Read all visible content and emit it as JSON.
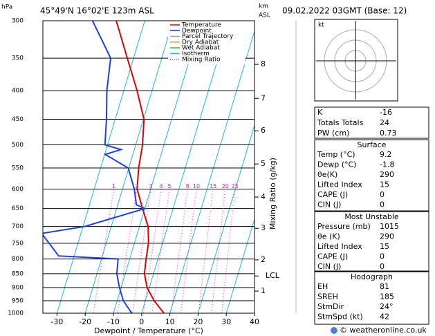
{
  "chart_data": {
    "type": "skewt",
    "location": "45°49'N 16°02'E 123m ASL",
    "date": "09.02.2022 03GMT (Base: 12)",
    "y_label": "hPa",
    "x_label": "Dewpoint / Temperature (°C)",
    "mixing_ratio_label": "Mixing Ratio (g/kg)",
    "height_label": "km",
    "height_sublabel": "ASL",
    "xlim": [
      -35,
      40
    ],
    "xticks": [
      -30,
      -20,
      -10,
      0,
      10,
      20,
      30,
      40
    ],
    "ylim": [
      1000,
      300
    ],
    "yticks": [
      300,
      350,
      400,
      450,
      500,
      550,
      600,
      650,
      700,
      750,
      800,
      850,
      900,
      950,
      1000
    ],
    "log_scale": true,
    "series": [
      {
        "name": "Temperature",
        "color": "#e00000",
        "pressures": [
          1000,
          950,
          900,
          850,
          800,
          750,
          700,
          650,
          600,
          550,
          500,
          450,
          400,
          350,
          300
        ],
        "values": [
          7.9,
          3.1,
          -0.8,
          -3.2,
          -4.2,
          -5,
          -6.9,
          -10.8,
          -14.8,
          -16.5,
          -17.6,
          -19.8,
          -25.3,
          -32.2,
          -40.1
        ]
      },
      {
        "name": "Dewpoint",
        "color": "#1a3ee8",
        "pressures": [
          1000,
          950,
          900,
          850,
          800,
          790,
          720,
          700,
          650,
          640,
          600,
          550,
          520,
          510,
          500,
          450,
          400,
          350,
          300
        ],
        "values": [
          -3.5,
          -7.8,
          -10.6,
          -13,
          -14.1,
          -35.5,
          -43.9,
          -29.5,
          -10,
          -13.4,
          -15.8,
          -20.2,
          -29.8,
          -24.7,
          -30.9,
          -33.1,
          -36,
          -38.1,
          -48.5
        ]
      }
    ],
    "legend": [
      {
        "name": "Parcel Trajectory",
        "color": "#999999"
      },
      {
        "name": "Dry Adiabat",
        "color": "#f0a020"
      },
      {
        "name": "Wet Adiabat",
        "color": "#20b020"
      },
      {
        "name": "Isotherm",
        "color": "#20b8d8"
      },
      {
        "name": "Mixing Ratio",
        "color": "#e020c0",
        "dashed": true
      }
    ],
    "mixing_ratio_lines": [
      1,
      2,
      3,
      4,
      5,
      8,
      10,
      15,
      20,
      25
    ],
    "mixing_ratio_label_pressure": 600,
    "height_ticks": [
      {
        "value": 1,
        "pressure": 913
      },
      {
        "value": 2,
        "pressure": 803
      },
      {
        "value": 3,
        "pressure": 705
      },
      {
        "value": 4,
        "pressure": 620
      },
      {
        "value": 5,
        "pressure": 541
      },
      {
        "value": 6,
        "pressure": 472
      },
      {
        "value": 7,
        "pressure": 413
      },
      {
        "value": 8,
        "pressure": 359
      }
    ],
    "lcl": {
      "label": "LCL",
      "pressure": 858
    },
    "hodograph_unit": "kt",
    "indices": [
      [
        "K",
        "-16"
      ],
      [
        "Totals Totals",
        "24"
      ],
      [
        "PW (cm)",
        "0.73"
      ]
    ],
    "surface": {
      "title": "Surface",
      "rows": [
        [
          "Temp (°C)",
          "9.2"
        ],
        [
          "Dewp (°C)",
          "-1.8"
        ],
        [
          "θe(K)",
          "290"
        ],
        [
          "Lifted Index",
          "15"
        ],
        [
          "CAPE (J)",
          "0"
        ],
        [
          "CIN (J)",
          "0"
        ]
      ]
    },
    "most_unstable": {
      "title": "Most Unstable",
      "rows": [
        [
          "Pressure (mb)",
          "1015"
        ],
        [
          "θe (K)",
          "290"
        ],
        [
          "Lifted Index",
          "15"
        ],
        [
          "CAPE (J)",
          "0"
        ],
        [
          "CIN (J)",
          "0"
        ]
      ]
    },
    "hodograph": {
      "title": "Hodograph",
      "rows": [
        [
          "EH",
          "81"
        ],
        [
          "SREH",
          "185"
        ],
        [
          "StmDir",
          "24°"
        ],
        [
          "StmSpd (kt)",
          "42"
        ]
      ]
    },
    "footer": "© weatheronline.co.uk"
  }
}
